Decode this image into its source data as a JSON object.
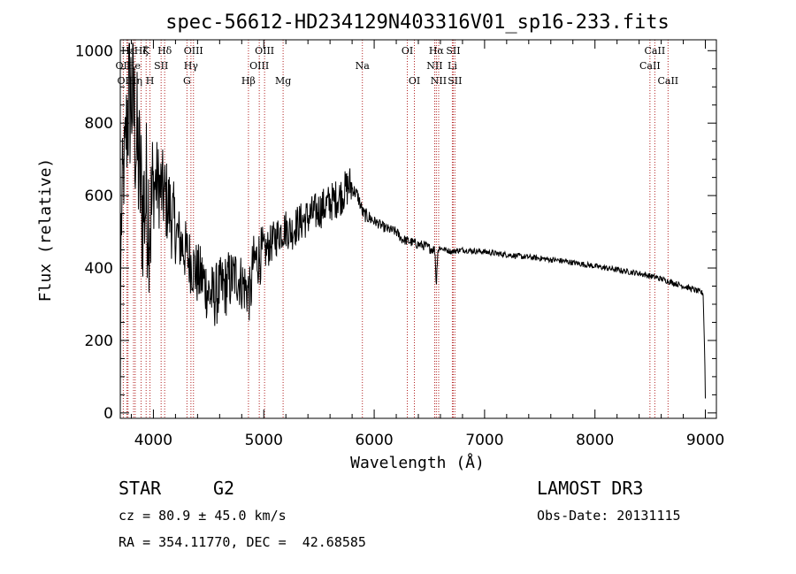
{
  "chart_data": {
    "type": "line",
    "title": "spec-56612-HD234129N403316V01_sp16-233.fits",
    "xlabel": "Wavelength (Å)",
    "ylabel": "Flux (relative)",
    "xlim": [
      3700,
      9100
    ],
    "ylim": [
      -15,
      1030
    ],
    "xticks": [
      4000,
      5000,
      6000,
      7000,
      8000,
      9000
    ],
    "yticks": [
      0,
      200,
      400,
      600,
      800,
      1000
    ],
    "series": [
      {
        "name": "flux",
        "anchors": [
          [
            3700,
            0
          ],
          [
            3705,
            480
          ],
          [
            3720,
            620
          ],
          [
            3740,
            700
          ],
          [
            3760,
            820
          ],
          [
            3780,
            860
          ],
          [
            3800,
            880
          ],
          [
            3820,
            840
          ],
          [
            3840,
            760
          ],
          [
            3860,
            700
          ],
          [
            3880,
            640
          ],
          [
            3900,
            560
          ],
          [
            3920,
            580
          ],
          [
            3940,
            600
          ],
          [
            3960,
            560
          ],
          [
            3980,
            540
          ],
          [
            4000,
            620
          ],
          [
            4030,
            640
          ],
          [
            4060,
            620
          ],
          [
            4100,
            600
          ],
          [
            4150,
            560
          ],
          [
            4200,
            500
          ],
          [
            4250,
            470
          ],
          [
            4300,
            440
          ],
          [
            4350,
            410
          ],
          [
            4400,
            380
          ],
          [
            4450,
            370
          ],
          [
            4500,
            330
          ],
          [
            4550,
            320
          ],
          [
            4600,
            340
          ],
          [
            4650,
            350
          ],
          [
            4700,
            370
          ],
          [
            4750,
            380
          ],
          [
            4800,
            360
          ],
          [
            4850,
            340
          ],
          [
            4880,
            320
          ],
          [
            4900,
            410
          ],
          [
            4950,
            430
          ],
          [
            5000,
            440
          ],
          [
            5050,
            460
          ],
          [
            5100,
            480
          ],
          [
            5150,
            500
          ],
          [
            5200,
            510
          ],
          [
            5250,
            500
          ],
          [
            5300,
            520
          ],
          [
            5350,
            530
          ],
          [
            5400,
            540
          ],
          [
            5450,
            550
          ],
          [
            5500,
            560
          ],
          [
            5550,
            570
          ],
          [
            5600,
            580
          ],
          [
            5650,
            590
          ],
          [
            5700,
            600
          ],
          [
            5750,
            620
          ],
          [
            5780,
            630
          ],
          [
            5800,
            620
          ],
          [
            5850,
            600
          ],
          [
            5900,
            550
          ],
          [
            5950,
            540
          ],
          [
            6000,
            530
          ],
          [
            6050,
            520
          ],
          [
            6100,
            510
          ],
          [
            6150,
            505
          ],
          [
            6200,
            500
          ],
          [
            6250,
            480
          ],
          [
            6300,
            475
          ],
          [
            6350,
            470
          ],
          [
            6400,
            465
          ],
          [
            6450,
            462
          ],
          [
            6500,
            455
          ],
          [
            6550,
            450
          ],
          [
            6563,
            350
          ],
          [
            6575,
            450
          ],
          [
            6600,
            455
          ],
          [
            6650,
            450
          ],
          [
            6700,
            445
          ],
          [
            6750,
            448
          ],
          [
            6800,
            450
          ],
          [
            6900,
            447
          ],
          [
            7000,
            445
          ],
          [
            7100,
            440
          ],
          [
            7200,
            437
          ],
          [
            7300,
            433
          ],
          [
            7400,
            430
          ],
          [
            7500,
            427
          ],
          [
            7600,
            423
          ],
          [
            7700,
            420
          ],
          [
            7800,
            415
          ],
          [
            7900,
            410
          ],
          [
            8000,
            405
          ],
          [
            8100,
            400
          ],
          [
            8200,
            395
          ],
          [
            8300,
            390
          ],
          [
            8400,
            385
          ],
          [
            8500,
            378
          ],
          [
            8600,
            370
          ],
          [
            8700,
            360
          ],
          [
            8800,
            350
          ],
          [
            8900,
            340
          ],
          [
            8980,
            330
          ],
          [
            8995,
            150
          ],
          [
            9000,
            40
          ]
        ]
      }
    ],
    "spectral_lines": [
      {
        "label": "Hε",
        "wavelength": 3770,
        "row": 1
      },
      {
        "label": "OII",
        "wavelength": 3727,
        "row": 2
      },
      {
        "label": "OIII",
        "wavelength": 3760,
        "row": 3
      },
      {
        "label": "Hζ",
        "wavelength": 3889,
        "row": 1
      },
      {
        "label": "K",
        "wavelength": 3934,
        "row": 1
      },
      {
        "label": "He",
        "wavelength": 3820,
        "row": 2
      },
      {
        "label": "Hη",
        "wavelength": 3835,
        "row": 3
      },
      {
        "label": "H",
        "wavelength": 3969,
        "row": 3
      },
      {
        "label": "SII",
        "wavelength": 4070,
        "row": 2
      },
      {
        "label": "Hδ",
        "wavelength": 4102,
        "row": 1
      },
      {
        "label": "OIII",
        "wavelength": 4363,
        "row": 1
      },
      {
        "label": "Hγ",
        "wavelength": 4340,
        "row": 2
      },
      {
        "label": "G",
        "wavelength": 4304,
        "row": 3
      },
      {
        "label": "Hβ",
        "wavelength": 4861,
        "row": 3
      },
      {
        "label": "OIII",
        "wavelength": 5007,
        "row": 1
      },
      {
        "label": "OIII",
        "wavelength": 4959,
        "row": 2
      },
      {
        "label": "Mg",
        "wavelength": 5175,
        "row": 3
      },
      {
        "label": "Na",
        "wavelength": 5893,
        "row": 2
      },
      {
        "label": "OI",
        "wavelength": 6300,
        "row": 1
      },
      {
        "label": "OI",
        "wavelength": 6364,
        "row": 3
      },
      {
        "label": "Hα",
        "wavelength": 6563,
        "row": 1
      },
      {
        "label": "SII",
        "wavelength": 6716,
        "row": 1
      },
      {
        "label": "NII",
        "wavelength": 6548,
        "row": 2
      },
      {
        "label": "Li",
        "wavelength": 6708,
        "row": 2
      },
      {
        "label": "NII",
        "wavelength": 6584,
        "row": 3
      },
      {
        "label": "SII",
        "wavelength": 6731,
        "row": 3
      },
      {
        "label": "CaII",
        "wavelength": 8542,
        "row": 1
      },
      {
        "label": "CaII",
        "wavelength": 8498,
        "row": 2
      },
      {
        "label": "CaII",
        "wavelength": 8662,
        "row": 3
      }
    ]
  },
  "info": {
    "object_class": "STAR",
    "subclass": "G2",
    "survey": "LAMOST DR3",
    "redshift": "cz = 80.9 ± 45.0 km/s",
    "obs_date": "Obs-Date: 20131115",
    "coordinates": "RA = 354.11770, DEC =  42.68585"
  }
}
